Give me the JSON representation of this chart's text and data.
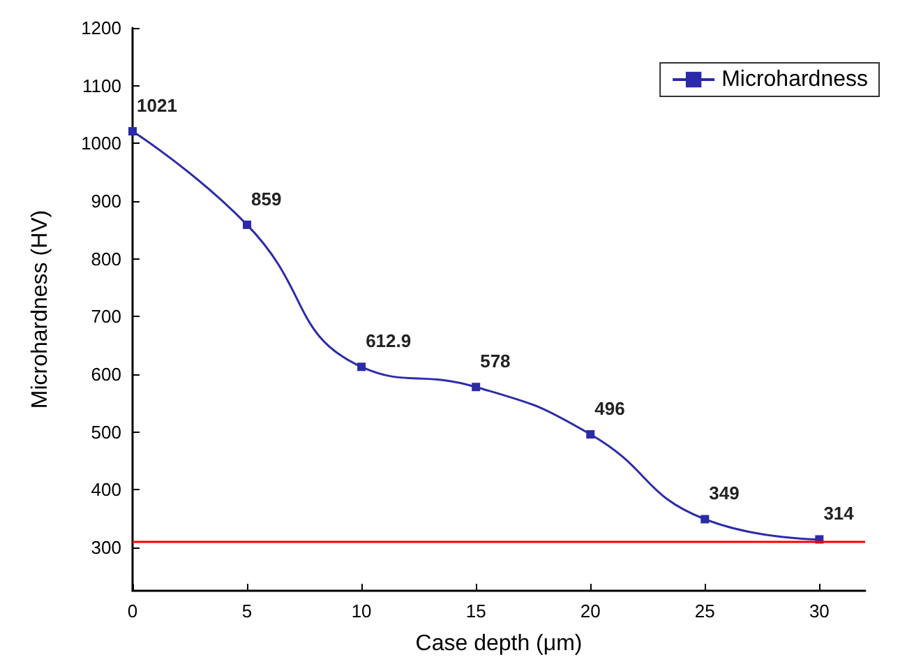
{
  "chart_data": {
    "type": "line",
    "xlabel": "Case depth (μm)",
    "ylabel": "Microhardness (HV)",
    "x": [
      0,
      5,
      10,
      15,
      20,
      25,
      30
    ],
    "series": [
      {
        "name": "Microhardness",
        "color": "#2b2ba8",
        "values": [
          1021,
          859,
          612.9,
          578,
          496,
          349,
          314
        ]
      }
    ],
    "xlim": [
      0,
      32
    ],
    "xticks": [
      0,
      5,
      10,
      15,
      20,
      25,
      30
    ],
    "ylim": [
      225,
      1200
    ],
    "yticks": [
      300,
      400,
      500,
      600,
      700,
      800,
      900,
      1000,
      1100,
      1200
    ],
    "ref_lines": [
      {
        "axis": "y",
        "value": 310,
        "color": "#ff0000"
      }
    ],
    "data_labels": true,
    "legend": "top right",
    "marker": "square"
  }
}
